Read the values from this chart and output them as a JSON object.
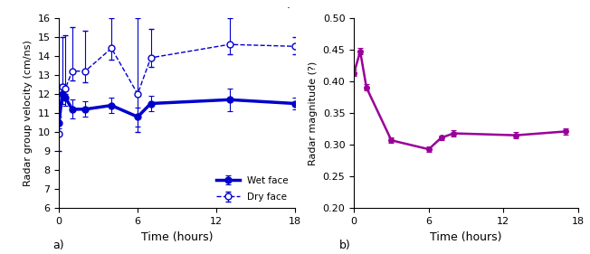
{
  "subplot_a": {
    "wet_face": {
      "x": [
        0,
        0.25,
        0.5,
        1,
        2,
        4,
        6,
        7,
        13,
        18
      ],
      "y": [
        10.5,
        12.0,
        11.8,
        11.2,
        11.2,
        11.4,
        10.8,
        11.5,
        11.7,
        11.5
      ],
      "yerr": [
        0.3,
        0.5,
        0.4,
        0.5,
        0.4,
        0.4,
        0.5,
        0.4,
        0.6,
        0.3
      ]
    },
    "dry_face": {
      "x": [
        0,
        0.25,
        0.5,
        1,
        2,
        4,
        6,
        7,
        13,
        18
      ],
      "y": [
        9.9,
        12.4,
        12.3,
        13.2,
        13.2,
        14.4,
        12.0,
        13.9,
        14.6,
        14.5
      ],
      "yerr_upper": [
        2.5,
        2.6,
        2.8,
        2.3,
        2.1,
        1.6,
        4.0,
        1.5,
        1.4,
        0.5
      ],
      "yerr_lower": [
        0.9,
        0.4,
        0.3,
        0.5,
        0.6,
        0.6,
        2.0,
        0.5,
        0.5,
        0.4
      ]
    },
    "xlabel": "Time (hours)",
    "ylabel": "Radar group velocity (cm/ns)",
    "ylim": [
      6,
      16
    ],
    "xlim": [
      0,
      18
    ],
    "xticks": [
      0,
      6,
      12,
      18
    ],
    "yticks": [
      6,
      7,
      8,
      9,
      10,
      11,
      12,
      13,
      14,
      15,
      16
    ],
    "wet_label": "Wet face",
    "dry_label": "Dry face",
    "color": "#0000cc",
    "panel_label": "a)"
  },
  "subplot_b": {
    "x": [
      0,
      0.5,
      1,
      3,
      6,
      7,
      8,
      13,
      17
    ],
    "y": [
      0.413,
      0.447,
      0.39,
      0.307,
      0.293,
      0.311,
      0.318,
      0.315,
      0.321
    ],
    "yerr": [
      0.005,
      0.005,
      0.005,
      0.004,
      0.004,
      0.004,
      0.005,
      0.005,
      0.005
    ],
    "xlabel": "Time (hours)",
    "ylabel": "Radar magnitude (?)",
    "ylim": [
      0.2,
      0.5
    ],
    "xlim": [
      0,
      18
    ],
    "xticks": [
      0,
      6,
      12,
      18
    ],
    "yticks": [
      0.2,
      0.25,
      0.3,
      0.35,
      0.4,
      0.45,
      0.5
    ],
    "color": "#990099",
    "panel_label": "b)",
    "dot_label": "."
  }
}
